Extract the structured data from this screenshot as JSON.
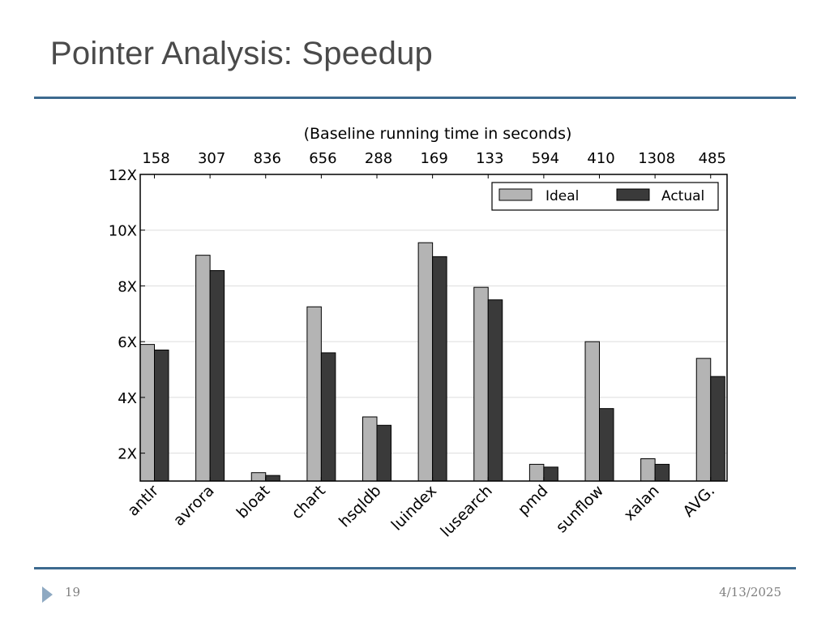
{
  "slide": {
    "title": "Pointer Analysis: Speedup",
    "number": "19",
    "date": "4/13/2025"
  },
  "colors": {
    "ideal": "#b4b4b4",
    "actual": "#3a3a3a",
    "rule": "#3d6a8f",
    "grid": "#dddddd"
  },
  "chart_data": {
    "type": "bar",
    "title": "(Baseline running time in seconds)",
    "categories": [
      "antlr",
      "avrora",
      "bloat",
      "chart",
      "hsqldb",
      "luindex",
      "lusearch",
      "pmd",
      "sunflow",
      "xalan",
      "AVG."
    ],
    "top_labels": [
      "158",
      "307",
      "836",
      "656",
      "288",
      "169",
      "133",
      "594",
      "410",
      "1308",
      "485"
    ],
    "series": [
      {
        "name": "Ideal",
        "values": [
          5.9,
          9.1,
          1.3,
          7.25,
          3.3,
          9.55,
          7.95,
          1.6,
          6.0,
          1.8,
          5.4
        ]
      },
      {
        "name": "Actual",
        "values": [
          5.7,
          8.55,
          1.2,
          5.6,
          3.0,
          9.05,
          7.5,
          1.5,
          3.6,
          1.6,
          4.75
        ]
      }
    ],
    "yticks": [
      "2X",
      "4X",
      "6X",
      "8X",
      "10X",
      "12X"
    ],
    "ytick_values": [
      2,
      4,
      6,
      8,
      10,
      12
    ],
    "ylim": [
      1,
      12
    ],
    "legend_position": "top-right",
    "xlabel": "",
    "ylabel": ""
  }
}
